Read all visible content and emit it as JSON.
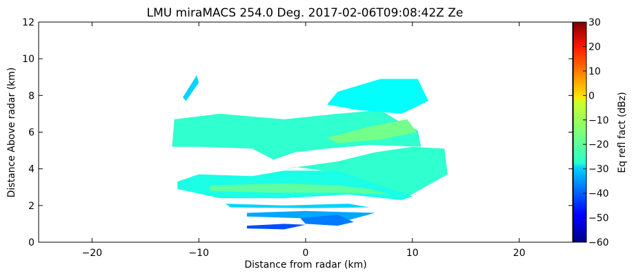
{
  "chart_data": {
    "type": "heatmap",
    "title": "LMU miraMACS 254.0 Deg. 2017-02-06T09:08:42Z  Ze",
    "xlabel": "Distance from radar (km)",
    "ylabel": "Distance Above radar  (km)",
    "xlim": [
      -25,
      25
    ],
    "ylim": [
      0,
      12
    ],
    "x_ticks": [
      -20,
      -10,
      0,
      10,
      20
    ],
    "x_tick_labels": [
      "−20",
      "−10",
      "0",
      "10",
      "20"
    ],
    "y_ticks": [
      0,
      2,
      4,
      6,
      8,
      10,
      12
    ],
    "y_tick_labels": [
      "0",
      "2",
      "4",
      "6",
      "8",
      "10",
      "12"
    ],
    "grid": false,
    "colorbar": {
      "label": "Eq refl fact (dBz)",
      "range": [
        -60,
        30
      ],
      "ticks": [
        -60,
        -50,
        -40,
        -30,
        -20,
        -10,
        0,
        10,
        20,
        30
      ],
      "tick_labels": [
        "−60",
        "−50",
        "−40",
        "−30",
        "−20",
        "−10",
        "0",
        "10",
        "20",
        "30"
      ],
      "colormap": "jet"
    },
    "echo_regions": [
      {
        "name": "upper-layer",
        "polygon": [
          [
            -12.5,
            5.2
          ],
          [
            -12.3,
            6.7
          ],
          [
            -8,
            7.0
          ],
          [
            -2,
            6.7
          ],
          [
            3,
            7.0
          ],
          [
            7,
            7.2
          ],
          [
            9,
            6.5
          ],
          [
            10.5,
            6.1
          ],
          [
            10.8,
            5.2
          ],
          [
            6,
            5.3
          ],
          [
            2,
            5.1
          ],
          [
            -1,
            4.9
          ],
          [
            -3,
            4.5
          ],
          [
            -5,
            5.1
          ],
          [
            -10,
            5.2
          ]
        ],
        "dbz": -22
      },
      {
        "name": "upper-core",
        "polygon": [
          [
            2,
            5.7
          ],
          [
            6,
            6.3
          ],
          [
            9.5,
            6.7
          ],
          [
            10.4,
            6.0
          ],
          [
            7,
            5.6
          ],
          [
            3,
            5.4
          ]
        ],
        "dbz": -16
      },
      {
        "name": "mid-right-layer",
        "polygon": [
          [
            -2,
            4.0
          ],
          [
            3,
            4.4
          ],
          [
            6.5,
            4.9
          ],
          [
            10,
            5.2
          ],
          [
            13,
            5.1
          ],
          [
            13.3,
            3.7
          ],
          [
            9,
            2.3
          ],
          [
            3,
            3.8
          ],
          [
            -1,
            4.1
          ]
        ],
        "dbz": -22
      },
      {
        "name": "lower-layer",
        "polygon": [
          [
            -12,
            3.3
          ],
          [
            -10,
            3.7
          ],
          [
            -5,
            3.6
          ],
          [
            -2,
            3.9
          ],
          [
            3,
            3.9
          ],
          [
            5,
            3.5
          ],
          [
            10,
            2.5
          ],
          [
            9,
            2.3
          ],
          [
            4,
            2.6
          ],
          [
            -2,
            2.4
          ],
          [
            -8,
            2.4
          ],
          [
            -12,
            2.9
          ]
        ],
        "dbz": -24
      },
      {
        "name": "lower-core",
        "polygon": [
          [
            -9,
            3.1
          ],
          [
            -2,
            3.2
          ],
          [
            3,
            3.1
          ],
          [
            6,
            2.9
          ],
          [
            8,
            2.6
          ],
          [
            3,
            2.7
          ],
          [
            -3,
            2.7
          ],
          [
            -9,
            2.8
          ]
        ],
        "dbz": -18
      },
      {
        "name": "top-cells",
        "polygon": [
          [
            3,
            8.2
          ],
          [
            7,
            8.9
          ],
          [
            10.5,
            8.9
          ],
          [
            11.5,
            7.7
          ],
          [
            9,
            7.0
          ],
          [
            5,
            7.2
          ],
          [
            2,
            7.5
          ]
        ],
        "dbz": -26
      },
      {
        "name": "left-cirrus",
        "polygon": [
          [
            -11.5,
            7.9
          ],
          [
            -10.2,
            9.1
          ],
          [
            -10.0,
            8.7
          ],
          [
            -11.2,
            7.7
          ]
        ],
        "dbz": -30
      },
      {
        "name": "thin-layer-1",
        "polygon": [
          [
            -7.5,
            2.1
          ],
          [
            -2,
            2.0
          ],
          [
            4,
            2.1
          ],
          [
            6,
            1.9
          ],
          [
            0,
            1.85
          ],
          [
            -7,
            1.9
          ]
        ],
        "dbz": -30
      },
      {
        "name": "thin-layer-2",
        "polygon": [
          [
            -5.5,
            1.6
          ],
          [
            0,
            1.7
          ],
          [
            6.5,
            1.6
          ],
          [
            4,
            1.2
          ],
          [
            0,
            1.3
          ],
          [
            -5.5,
            1.4
          ]
        ],
        "dbz": -34
      },
      {
        "name": "thin-layer-3",
        "polygon": [
          [
            -0.5,
            1.3
          ],
          [
            3,
            1.5
          ],
          [
            4.5,
            1.1
          ],
          [
            3,
            0.9
          ],
          [
            0,
            1.0
          ]
        ],
        "dbz": -38
      },
      {
        "name": "thin-layer-4",
        "polygon": [
          [
            -5.5,
            0.9
          ],
          [
            -2,
            1.0
          ],
          [
            0,
            0.95
          ],
          [
            -2,
            0.7
          ],
          [
            -5.5,
            0.75
          ]
        ],
        "dbz": -42
      }
    ]
  }
}
